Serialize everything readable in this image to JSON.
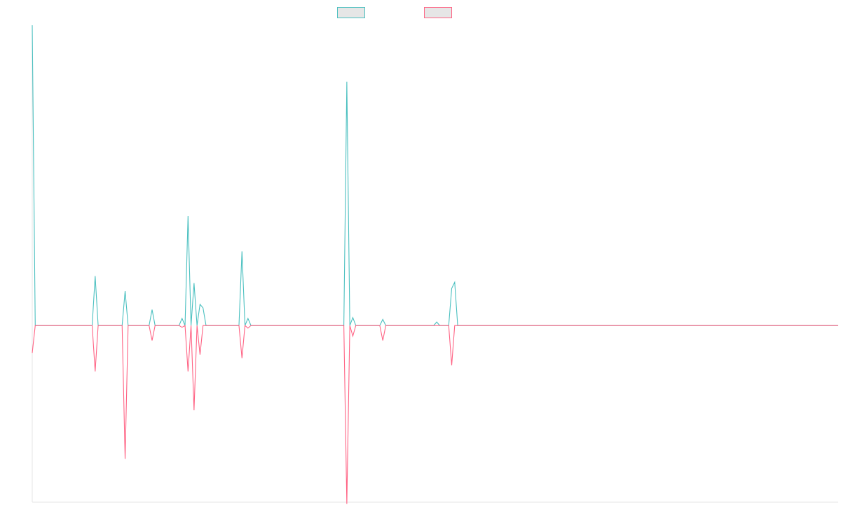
{
  "chart_data": {
    "type": "line",
    "title": "",
    "xlabel": "",
    "ylabel": "",
    "grid": false,
    "legend_position": "top-center",
    "x_count": 270,
    "ylim": [
      -1.0,
      1.7
    ],
    "series": [
      {
        "color": "#4bc0c0",
        "spikes": [
          [
            0,
            1.7
          ],
          [
            1,
            0.0
          ],
          [
            9,
            0.0
          ],
          [
            21,
            0.28
          ],
          [
            31,
            0.195
          ],
          [
            40,
            0.09
          ],
          [
            50,
            0.04
          ],
          [
            52,
            0.62
          ],
          [
            54,
            0.24
          ],
          [
            56,
            0.12
          ],
          [
            57,
            0.1
          ],
          [
            70,
            0.42
          ],
          [
            72,
            0.04
          ],
          [
            105,
            1.38
          ],
          [
            107,
            0.045
          ],
          [
            117,
            0.035
          ],
          [
            135,
            0.02
          ],
          [
            140,
            0.21
          ],
          [
            141,
            0.245
          ],
          [
            142,
            0.0
          ]
        ]
      },
      {
        "color": "#ff6384",
        "spikes": [
          [
            0,
            -0.155
          ],
          [
            1,
            0.0
          ],
          [
            21,
            -0.26
          ],
          [
            31,
            -0.755
          ],
          [
            40,
            -0.085
          ],
          [
            50,
            -0.01
          ],
          [
            52,
            -0.26
          ],
          [
            54,
            -0.48
          ],
          [
            56,
            -0.165
          ],
          [
            70,
            -0.185
          ],
          [
            72,
            -0.015
          ],
          [
            105,
            -1.01
          ],
          [
            107,
            -0.06
          ],
          [
            117,
            -0.085
          ],
          [
            140,
            -0.225
          ],
          [
            141,
            0.0
          ]
        ]
      }
    ]
  }
}
